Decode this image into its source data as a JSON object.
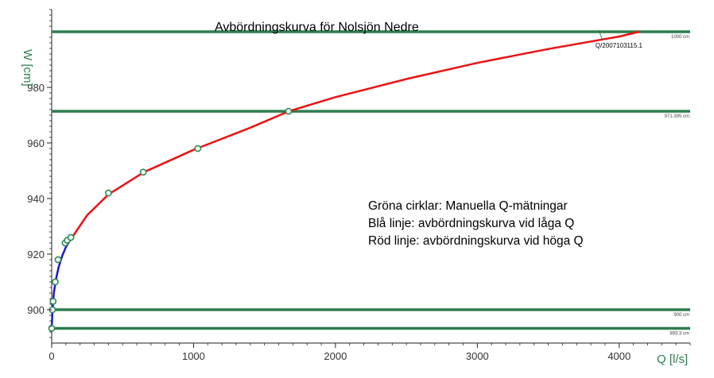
{
  "chart_data": {
    "type": "line",
    "title": "Avbördningskurva för Nolsjön Nedre",
    "xlabel": "Q [l/s]",
    "ylabel": "W [cm]",
    "xlim": [
      0,
      4500
    ],
    "ylim": [
      888,
      1008
    ],
    "xticks": [
      0,
      1000,
      2000,
      3000,
      4000
    ],
    "yticks": [
      900,
      920,
      940,
      960,
      980
    ],
    "grid": false,
    "reference_lines": [
      {
        "y": 1000,
        "label": "1000 cm"
      },
      {
        "y": 971.395,
        "label": "971.395 cm"
      },
      {
        "y": 900,
        "label": "900 cm"
      },
      {
        "y": 893.3,
        "label": "893.3 cm"
      }
    ],
    "series": [
      {
        "name": "Blå linje",
        "color": "#1a1acc",
        "x": [
          0,
          5,
          15,
          30,
          50,
          75,
          100,
          130
        ],
        "y": [
          893.3,
          899,
          906,
          911,
          915.5,
          919.5,
          922.5,
          925
        ]
      },
      {
        "name": "Röd linje",
        "color": "#ee1111",
        "x": [
          130,
          250,
          400,
          650,
          1000,
          1400,
          1671,
          2000,
          2500,
          3000,
          3500,
          4000,
          4140
        ],
        "y": [
          925,
          934,
          941.5,
          949.5,
          957.5,
          965.5,
          971.395,
          976.5,
          983,
          988.8,
          993.8,
          998.3,
          1000
        ]
      },
      {
        "name": "Manuella Q-mätningar",
        "color": "#2e8b57",
        "marker": "circle",
        "x": [
          0,
          5,
          10,
          25,
          45,
          95,
          110,
          135,
          400,
          645,
          1030,
          1670
        ],
        "y": [
          893.3,
          900,
          903,
          910,
          918,
          924,
          925,
          926,
          942,
          949.5,
          958,
          971.4
        ]
      }
    ],
    "callout": {
      "text": "Q/2007103115.1",
      "x": 3900,
      "y": 997.5
    },
    "annotations": [
      "Gröna cirklar: Manuella Q-mätningar",
      "Blå linje: avbördningskurva vid låga Q",
      "Röd linje: avbördningskurva vid höga Q"
    ]
  }
}
